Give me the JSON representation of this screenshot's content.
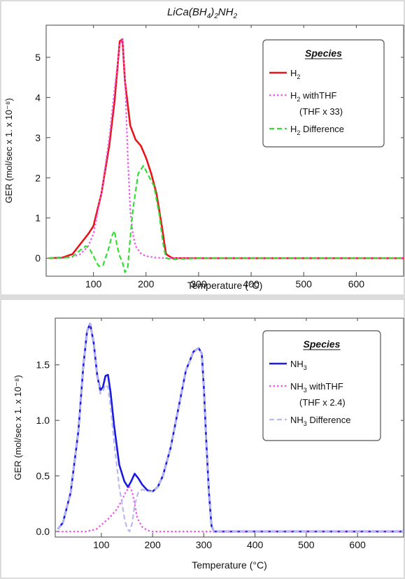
{
  "figure": {
    "title_main": "LiCa(BH",
    "title_sub1": "4",
    "title_mid": ")",
    "title_sub2": "2",
    "title_end": "NH",
    "title_sub3": "2"
  },
  "chart_data": [
    {
      "type": "line",
      "xlabel": "Temperature (°C)",
      "ylabel": "GER (mol/sec x 1. x 10⁻⁸)",
      "xlim": [
        10,
        690
      ],
      "ylim": [
        -0.45,
        5.8
      ],
      "xticks": [
        100,
        200,
        300,
        400,
        500,
        600
      ],
      "yticks": [
        0,
        1,
        2,
        3,
        4,
        5
      ],
      "grid": false,
      "legend": {
        "title": "Species",
        "placement": "top-right",
        "entries": [
          {
            "base": "H",
            "sub": "2",
            "rest": "",
            "line2": ""
          },
          {
            "base": "H",
            "sub": "2",
            "rest": " withTHF",
            "line2": "(THF x 33)"
          },
          {
            "base": "H",
            "sub": "2",
            "rest": " Difference",
            "line2": ""
          }
        ]
      },
      "series": [
        {
          "color": "#e8141c",
          "dash": "solid",
          "x": [
            15,
            40,
            60,
            75,
            90,
            100,
            115,
            130,
            140,
            150,
            155,
            160,
            170,
            180,
            190,
            200,
            210,
            220,
            230,
            238,
            250,
            300,
            400,
            500,
            600,
            690
          ],
          "y": [
            0,
            0.01,
            0.1,
            0.35,
            0.6,
            0.8,
            1.6,
            2.8,
            3.9,
            5.4,
            5.45,
            4.4,
            3.3,
            2.95,
            2.8,
            2.5,
            2.1,
            1.6,
            0.8,
            0.1,
            0,
            0,
            0,
            0,
            0,
            0
          ]
        },
        {
          "color": "#ee55ee",
          "dash": "dotted",
          "x": [
            15,
            40,
            60,
            75,
            90,
            100,
            115,
            130,
            140,
            150,
            155,
            160,
            165,
            170,
            175,
            180,
            190,
            200,
            220,
            250,
            300,
            400,
            500,
            600,
            690
          ],
          "y": [
            0,
            0,
            0.03,
            0.1,
            0.3,
            0.6,
            1.6,
            3.0,
            4.2,
            5.3,
            5.45,
            4.5,
            2.6,
            1.2,
            0.6,
            0.3,
            0.12,
            0.05,
            0.01,
            0,
            0,
            0,
            0,
            0,
            0
          ]
        },
        {
          "color": "#33dd33",
          "dash": "dashed",
          "x": [
            15,
            40,
            60,
            75,
            85,
            92,
            100,
            110,
            118,
            128,
            135,
            140,
            145,
            150,
            155,
            160,
            165,
            170,
            175,
            185,
            195,
            205,
            215,
            225,
            232,
            238,
            250,
            300,
            400,
            500,
            600,
            690
          ],
          "y": [
            0,
            0,
            0.04,
            0.2,
            0.3,
            0.25,
            0.05,
            -0.2,
            -0.18,
            0.2,
            0.55,
            0.68,
            0.3,
            0.05,
            -0.1,
            -0.35,
            -0.25,
            0.5,
            1.2,
            2.1,
            2.3,
            2.05,
            1.8,
            1.1,
            0.4,
            0.0,
            -0.03,
            0,
            0,
            0,
            0,
            0
          ]
        }
      ]
    },
    {
      "type": "line",
      "xlabel": "Temperature (°C)",
      "ylabel": "GER (mol/sec x 1. x 10⁻⁸)",
      "xlim": [
        10,
        690
      ],
      "ylim": [
        -0.05,
        1.92
      ],
      "xticks": [
        100,
        200,
        300,
        400,
        500,
        600
      ],
      "yticks": [
        0.0,
        0.5,
        1.0,
        1.5
      ],
      "grid": false,
      "legend": {
        "title": "Species",
        "placement": "top-right",
        "entries": [
          {
            "base": "NH",
            "sub": "3",
            "rest": "",
            "line2": ""
          },
          {
            "base": "NH",
            "sub": "3",
            "rest": " withTHF",
            "line2": "(THF x 2.4)"
          },
          {
            "base": "NH",
            "sub": "3",
            "rest": " Difference",
            "line2": ""
          }
        ]
      },
      "series": [
        {
          "color": "#1a1ae0",
          "dash": "solid",
          "x": [
            15,
            25,
            40,
            55,
            65,
            72,
            78,
            85,
            92,
            98,
            103,
            108,
            113,
            118,
            125,
            135,
            145,
            152,
            158,
            165,
            172,
            180,
            190,
            200,
            210,
            220,
            235,
            250,
            265,
            280,
            290,
            296,
            300,
            305,
            310,
            315,
            320,
            340,
            400,
            500,
            600,
            690
          ],
          "y": [
            0.02,
            0.08,
            0.35,
            0.9,
            1.5,
            1.8,
            1.87,
            1.7,
            1.4,
            1.27,
            1.3,
            1.4,
            1.41,
            1.25,
            0.95,
            0.6,
            0.45,
            0.4,
            0.45,
            0.52,
            0.48,
            0.42,
            0.37,
            0.36,
            0.4,
            0.5,
            0.75,
            1.1,
            1.45,
            1.62,
            1.65,
            1.6,
            1.3,
            0.8,
            0.35,
            0.05,
            0,
            0,
            0,
            0,
            0,
            0
          ]
        },
        {
          "color": "#ee55ee",
          "dash": "dotted",
          "x": [
            15,
            40,
            70,
            90,
            100,
            115,
            130,
            140,
            148,
            155,
            160,
            165,
            170,
            180,
            190,
            200,
            220,
            300,
            400,
            500,
            600,
            690
          ],
          "y": [
            0,
            0,
            0,
            0.02,
            0.06,
            0.12,
            0.2,
            0.28,
            0.36,
            0.4,
            0.36,
            0.25,
            0.12,
            0.04,
            0.01,
            0,
            0,
            0,
            0,
            0,
            0,
            0
          ]
        },
        {
          "color": "#b8b8f2",
          "dash": "dashed",
          "x": [
            15,
            25,
            40,
            55,
            65,
            72,
            78,
            85,
            92,
            98,
            103,
            108,
            113,
            118,
            125,
            135,
            145,
            150,
            155,
            160,
            165,
            172,
            180,
            190,
            200,
            210,
            220,
            235,
            250,
            265,
            280,
            290,
            296,
            300,
            305,
            310,
            315,
            320,
            340,
            400,
            500,
            600,
            690
          ],
          "y": [
            0.02,
            0.08,
            0.35,
            0.9,
            1.5,
            1.8,
            1.87,
            1.7,
            1.4,
            1.24,
            1.26,
            1.32,
            1.3,
            1.12,
            0.8,
            0.4,
            0.12,
            0.03,
            0.0,
            0.07,
            0.24,
            0.35,
            0.38,
            0.36,
            0.36,
            0.4,
            0.5,
            0.75,
            1.1,
            1.45,
            1.62,
            1.65,
            1.6,
            1.3,
            0.8,
            0.35,
            0.05,
            0,
            0,
            0,
            0,
            0,
            0
          ]
        }
      ]
    }
  ]
}
